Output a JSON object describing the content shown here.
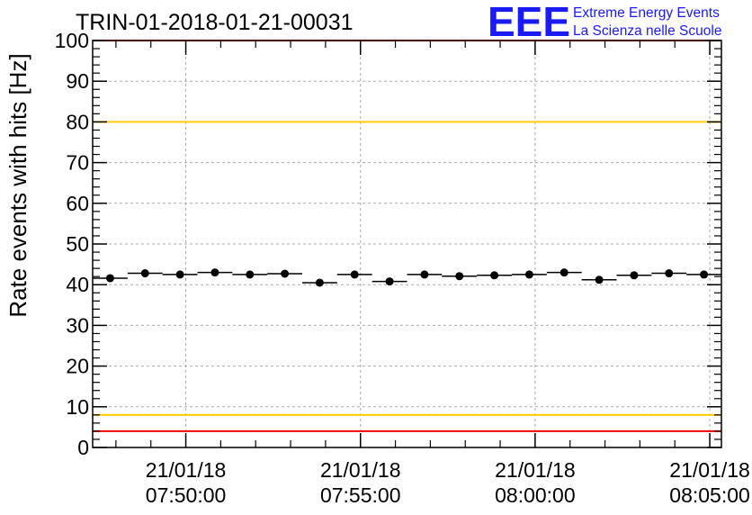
{
  "chart_data": {
    "type": "scatter",
    "title": "TRIN-01-2018-01-21-00031",
    "ylabel": "Rate events with hits [Hz]",
    "xlabel": "",
    "ylim": [
      0,
      100
    ],
    "yticks": [
      "0",
      "10",
      "20",
      "30",
      "40",
      "50",
      "60",
      "70",
      "80",
      "90",
      "100"
    ],
    "xlim": [
      "07:47:20",
      "08:05:20"
    ],
    "xticks": [
      {
        "time": "07:50:00",
        "date_label": "21/01/18",
        "time_label": "07:50:00"
      },
      {
        "time": "07:55:00",
        "date_label": "21/01/18",
        "time_label": "07:55:00"
      },
      {
        "time": "08:00:00",
        "date_label": "21/01/18",
        "time_label": "08:00:00"
      },
      {
        "time": "08:05:00",
        "date_label": "21/01/18",
        "time_label": "08:05:00"
      }
    ],
    "grid": true,
    "series": [
      {
        "x": [
          "07:47:50",
          "07:48:50",
          "07:49:50",
          "07:50:50",
          "07:51:50",
          "07:52:50",
          "07:53:50",
          "07:54:50",
          "07:55:50",
          "07:56:50",
          "07:57:50",
          "07:58:50",
          "07:59:50",
          "08:00:50",
          "08:01:50",
          "08:02:50",
          "08:03:50",
          "08:04:50"
        ],
        "y": [
          41.6,
          42.8,
          42.5,
          43.0,
          42.5,
          42.7,
          40.5,
          42.5,
          40.8,
          42.5,
          42.1,
          42.3,
          42.5,
          43.0,
          41.2,
          42.3,
          42.8,
          42.5
        ],
        "xerr_seconds": 30
      }
    ],
    "reference_lines": [
      {
        "y": 100,
        "color": "#ff0000"
      },
      {
        "y": 80,
        "color": "#ffcc00"
      },
      {
        "y": 8,
        "color": "#ffcc00"
      },
      {
        "y": 4,
        "color": "#ff0000"
      }
    ]
  },
  "logo": {
    "mark": "EEE",
    "line1": "Extreme Energy Events",
    "line2": "La Scienza nelle Scuole",
    "color": "#1a1aff"
  }
}
